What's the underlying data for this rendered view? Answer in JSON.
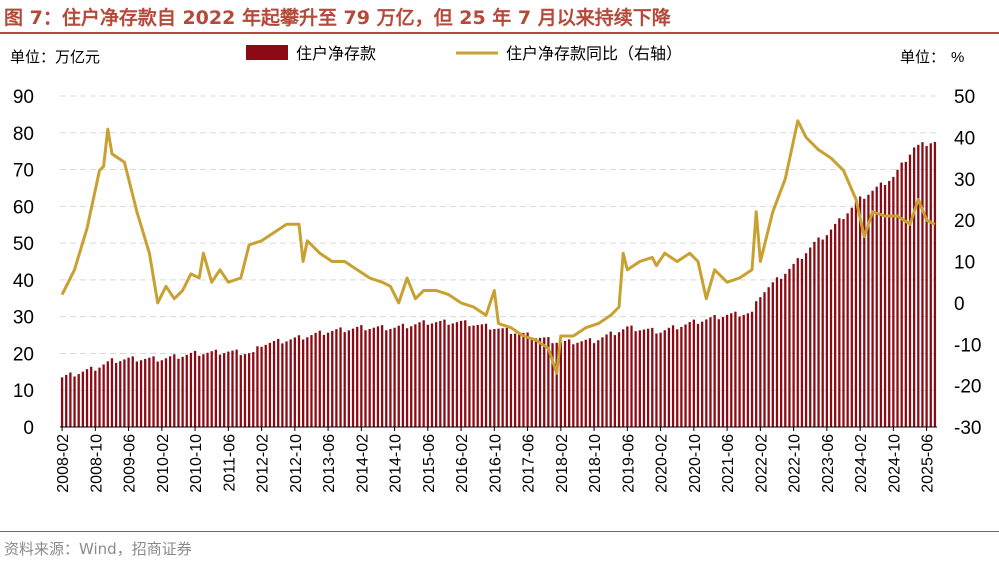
{
  "header": {
    "title": "图 7：住户净存款自 2022 年起攀升至 79 万亿，但 25 年 7 月以来持续下降"
  },
  "footer": {
    "source": "资料来源：Wind，招商证券"
  },
  "colors": {
    "title": "#b5493a",
    "bar": "#8b0a14",
    "line": "#c9a032",
    "grid": "#d9d9d9"
  },
  "chart_data": {
    "type": "bar+line",
    "left_unit": "单位：万亿元",
    "right_unit_prefix": "单位：",
    "right_unit_symbol": "%",
    "legend": [
      "住户净存款",
      "住户净存款同比（右轴）"
    ],
    "y_left": {
      "min": 0,
      "max": 90,
      "ticks": [
        0,
        10,
        20,
        30,
        40,
        50,
        60,
        70,
        80,
        90
      ]
    },
    "y_right": {
      "min": -30,
      "max": 50,
      "ticks": [
        -30,
        -20,
        -10,
        0,
        10,
        20,
        30,
        40,
        50
      ]
    },
    "grid": "horizontal-dashed",
    "x_tick_labels": [
      "2008-02",
      "2008-10",
      "2009-06",
      "2010-02",
      "2010-10",
      "2011-06",
      "2012-02",
      "2012-10",
      "2013-06",
      "2014-02",
      "2014-10",
      "2015-06",
      "2016-02",
      "2016-10",
      "2017-06",
      "2018-02",
      "2018-10",
      "2019-06",
      "2020-02",
      "2020-10",
      "2021-06",
      "2022-02",
      "2022-10",
      "2023-06",
      "2024-02",
      "2024-10",
      "2025-06"
    ],
    "bar_anchors": [
      [
        "2008-02",
        13.5
      ],
      [
        "2008-10",
        16.0
      ],
      [
        "2009-02",
        18.0
      ],
      [
        "2009-06",
        18.5
      ],
      [
        "2010-02",
        18.5
      ],
      [
        "2010-10",
        20.0
      ],
      [
        "2011-06",
        20.5
      ],
      [
        "2011-12",
        20.0
      ],
      [
        "2012-02",
        22.5
      ],
      [
        "2012-10",
        24.0
      ],
      [
        "2013-06",
        26.0
      ],
      [
        "2014-02",
        27.0
      ],
      [
        "2014-10",
        27.0
      ],
      [
        "2015-06",
        28.5
      ],
      [
        "2016-02",
        28.5
      ],
      [
        "2016-10",
        27.0
      ],
      [
        "2017-06",
        25.0
      ],
      [
        "2018-02",
        23.0
      ],
      [
        "2018-10",
        23.5
      ],
      [
        "2019-06",
        27.0
      ],
      [
        "2020-02",
        26.0
      ],
      [
        "2020-10",
        28.5
      ],
      [
        "2021-06",
        30.5
      ],
      [
        "2021-12",
        31.0
      ],
      [
        "2022-02",
        36.0
      ],
      [
        "2022-10",
        44.0
      ],
      [
        "2023-03",
        50.0
      ],
      [
        "2023-06",
        52.5
      ],
      [
        "2024-02",
        62.0
      ],
      [
        "2024-10",
        68.0
      ],
      [
        "2025-03",
        76.0
      ],
      [
        "2025-07",
        77.5
      ],
      [
        "2025-08",
        77.5
      ]
    ],
    "line_points": [
      [
        "2008-02",
        2
      ],
      [
        "2008-05",
        8
      ],
      [
        "2008-08",
        18
      ],
      [
        "2008-11",
        32
      ],
      [
        "2008-12",
        33
      ],
      [
        "2009-01",
        42
      ],
      [
        "2009-02",
        36
      ],
      [
        "2009-05",
        34
      ],
      [
        "2009-08",
        22
      ],
      [
        "2009-11",
        12
      ],
      [
        "2010-01",
        0
      ],
      [
        "2010-03",
        4
      ],
      [
        "2010-05",
        1
      ],
      [
        "2010-07",
        3
      ],
      [
        "2010-09",
        7
      ],
      [
        "2010-11",
        6
      ],
      [
        "2010-12",
        12
      ],
      [
        "2011-02",
        5
      ],
      [
        "2011-04",
        8
      ],
      [
        "2011-06",
        5
      ],
      [
        "2011-09",
        6
      ],
      [
        "2011-11",
        14
      ],
      [
        "2012-02",
        15
      ],
      [
        "2012-05",
        17
      ],
      [
        "2012-08",
        19
      ],
      [
        "2012-11",
        19
      ],
      [
        "2012-12",
        10
      ],
      [
        "2013-01",
        15
      ],
      [
        "2013-04",
        12
      ],
      [
        "2013-07",
        10
      ],
      [
        "2013-10",
        10
      ],
      [
        "2014-01",
        8
      ],
      [
        "2014-04",
        6
      ],
      [
        "2014-07",
        5
      ],
      [
        "2014-09",
        4
      ],
      [
        "2014-11",
        0
      ],
      [
        "2015-01",
        6
      ],
      [
        "2015-03",
        1
      ],
      [
        "2015-05",
        3
      ],
      [
        "2015-08",
        3
      ],
      [
        "2015-11",
        2
      ],
      [
        "2016-02",
        0
      ],
      [
        "2016-05",
        -1
      ],
      [
        "2016-08",
        -3
      ],
      [
        "2016-10",
        3
      ],
      [
        "2016-11",
        -5
      ],
      [
        "2017-02",
        -6
      ],
      [
        "2017-05",
        -8
      ],
      [
        "2017-08",
        -9
      ],
      [
        "2017-11",
        -11
      ],
      [
        "2018-01",
        -17
      ],
      [
        "2018-02",
        -8
      ],
      [
        "2018-05",
        -8
      ],
      [
        "2018-08",
        -6
      ],
      [
        "2018-11",
        -5
      ],
      [
        "2019-02",
        -3
      ],
      [
        "2019-04",
        -1
      ],
      [
        "2019-05",
        12
      ],
      [
        "2019-06",
        8
      ],
      [
        "2019-09",
        10
      ],
      [
        "2019-12",
        11
      ],
      [
        "2020-01",
        9
      ],
      [
        "2020-03",
        12
      ],
      [
        "2020-06",
        10
      ],
      [
        "2020-09",
        12
      ],
      [
        "2020-11",
        10
      ],
      [
        "2021-01",
        1
      ],
      [
        "2021-03",
        8
      ],
      [
        "2021-06",
        5
      ],
      [
        "2021-09",
        6
      ],
      [
        "2021-12",
        8
      ],
      [
        "2022-01",
        22
      ],
      [
        "2022-02",
        10
      ],
      [
        "2022-05",
        22
      ],
      [
        "2022-08",
        30
      ],
      [
        "2022-11",
        44
      ],
      [
        "2023-01",
        40
      ],
      [
        "2023-04",
        37
      ],
      [
        "2023-07",
        35
      ],
      [
        "2023-10",
        32
      ],
      [
        "2024-01",
        25
      ],
      [
        "2024-03",
        16
      ],
      [
        "2024-05",
        22
      ],
      [
        "2024-08",
        21
      ],
      [
        "2024-11",
        21
      ],
      [
        "2025-02",
        19
      ],
      [
        "2025-04",
        25
      ],
      [
        "2025-06",
        20
      ],
      [
        "2025-08",
        19
      ]
    ]
  }
}
